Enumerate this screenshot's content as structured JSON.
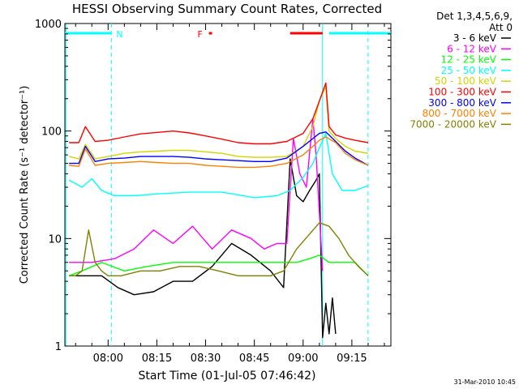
{
  "chart_data": {
    "type": "line",
    "title": "HESSI Observing Summary Count Rates, Corrected",
    "xlabel": "Start Time (01-Jul-05 07:46:42)",
    "ylabel": "Corrected Count Rate (s⁻¹ detector⁻¹)",
    "y_scale": "log",
    "ylim": [
      1,
      1000
    ],
    "xlim": [
      "07:46:42",
      "09:27:00"
    ],
    "x_ticks": [
      "08:00",
      "08:15",
      "08:30",
      "08:45",
      "09:00",
      "09:15"
    ],
    "y_ticks": [
      {
        "value": 1,
        "label": "1"
      },
      {
        "value": 10,
        "label": "10"
      },
      {
        "value": 100,
        "label": "100"
      },
      {
        "value": 1000,
        "label": "1000"
      }
    ],
    "legend": {
      "position": "right",
      "header": [
        "Det 1,3,4,5,6,9,",
        "Att 0"
      ]
    },
    "flags": [
      {
        "label": "N",
        "color": "#00ffff",
        "segments": [
          [
            "07:46:42",
            "08:01:00"
          ],
          [
            "09:08:00",
            "09:27:00"
          ]
        ]
      },
      {
        "label": "F",
        "color": "#ff0000",
        "segments": [
          [
            "08:31:00",
            "08:32:00"
          ],
          [
            "08:56:00",
            "09:06:00"
          ]
        ]
      }
    ],
    "vertical_lines": [
      {
        "x": "07:47:00",
        "color": "#00ffff",
        "style": "solid"
      },
      {
        "x": "08:01:00",
        "color": "#00ffff",
        "style": "dashed"
      },
      {
        "x": "09:06:00",
        "color": "#00ffff",
        "style": "solid"
      },
      {
        "x": "09:20:00",
        "color": "#00ffff",
        "style": "dashed"
      }
    ],
    "series": [
      {
        "name": "3 - 6 keV",
        "color": "#000000",
        "x": [
          "07:48",
          "07:52",
          "07:58",
          "08:03",
          "08:08",
          "08:14",
          "08:20",
          "08:26",
          "08:32",
          "08:38",
          "08:44",
          "08:50",
          "08:54",
          "08:56",
          "08:58",
          "09:00",
          "09:02",
          "09:04",
          "09:05",
          "09:06",
          "09:07",
          "09:08",
          "09:09",
          "09:10"
        ],
        "y": [
          4.5,
          4.5,
          4.5,
          3.5,
          3,
          3.2,
          4,
          4,
          5.5,
          9,
          7,
          5,
          3.5,
          55,
          25,
          22,
          28,
          35,
          40,
          1.2,
          2.5,
          1.3,
          2.8,
          1.3
        ]
      },
      {
        "name": "6 - 12 keV",
        "color": "#ff00ff",
        "x": [
          "07:48",
          "07:55",
          "08:02",
          "08:08",
          "08:14",
          "08:20",
          "08:26",
          "08:32",
          "08:38",
          "08:44",
          "08:48",
          "08:52",
          "08:55",
          "08:57",
          "08:59",
          "09:01",
          "09:03",
          "09:04",
          "09:06"
        ],
        "y": [
          6,
          6,
          6.5,
          8,
          12,
          9,
          13,
          8,
          12,
          10,
          8,
          9,
          9,
          85,
          40,
          30,
          130,
          60,
          5
        ]
      },
      {
        "name": "12 - 25 keV",
        "color": "#00ff00",
        "x": [
          "07:48",
          "07:52",
          "07:58",
          "08:05",
          "08:12",
          "08:20",
          "08:30",
          "08:40",
          "08:50",
          "08:58",
          "09:02",
          "09:05",
          "09:08",
          "09:12",
          "09:16",
          "09:20"
        ],
        "y": [
          4.5,
          5,
          6,
          5,
          5.5,
          6,
          6,
          6,
          6,
          6,
          6.5,
          7,
          6,
          6,
          6,
          4.5
        ]
      },
      {
        "name": "25 - 50 keV",
        "color": "#00ffff",
        "x": [
          "07:48",
          "07:52",
          "07:55",
          "07:58",
          "08:02",
          "08:08",
          "08:15",
          "08:25",
          "08:35",
          "08:45",
          "08:52",
          "08:56",
          "09:00",
          "09:03",
          "09:05",
          "09:07",
          "09:09",
          "09:12",
          "09:16",
          "09:20"
        ],
        "y": [
          35,
          30,
          36,
          28,
          25,
          25,
          26,
          27,
          27,
          24,
          25,
          28,
          37,
          50,
          70,
          95,
          40,
          28,
          28,
          31
        ]
      },
      {
        "name": "50 - 100 keV",
        "color": "#d4d400",
        "x": [
          "07:48",
          "07:51",
          "07:53",
          "07:56",
          "08:00",
          "08:05",
          "08:10",
          "08:15",
          "08:20",
          "08:25",
          "08:30",
          "08:35",
          "08:40",
          "08:45",
          "08:50",
          "08:55",
          "09:00",
          "09:03",
          "09:05",
          "09:07",
          "09:08",
          "09:10",
          "09:13",
          "09:16",
          "09:20"
        ],
        "y": [
          58,
          55,
          75,
          55,
          58,
          62,
          64,
          65,
          66,
          66,
          64,
          62,
          58,
          57,
          57,
          58,
          72,
          110,
          190,
          260,
          100,
          85,
          72,
          65,
          62
        ]
      },
      {
        "name": "100 - 300 keV",
        "color": "#ff0000",
        "x": [
          "07:48",
          "07:51",
          "07:53",
          "07:56",
          "08:00",
          "08:05",
          "08:10",
          "08:15",
          "08:20",
          "08:25",
          "08:30",
          "08:35",
          "08:40",
          "08:45",
          "08:50",
          "08:55",
          "09:00",
          "09:03",
          "09:05",
          "09:07",
          "09:08",
          "09:10",
          "09:13",
          "09:16",
          "09:20"
        ],
        "y": [
          78,
          78,
          110,
          80,
          82,
          88,
          94,
          97,
          100,
          96,
          90,
          84,
          78,
          76,
          76,
          80,
          95,
          130,
          190,
          280,
          110,
          92,
          86,
          82,
          78
        ]
      },
      {
        "name": "300 - 800 keV",
        "color": "#0000ff",
        "x": [
          "07:48",
          "07:51",
          "07:53",
          "07:56",
          "08:00",
          "08:05",
          "08:10",
          "08:15",
          "08:20",
          "08:25",
          "08:30",
          "08:35",
          "08:40",
          "08:45",
          "08:50",
          "08:55",
          "09:00",
          "09:03",
          "09:05",
          "09:07",
          "09:10",
          "09:13",
          "09:16",
          "09:20"
        ],
        "y": [
          50,
          50,
          72,
          52,
          55,
          56,
          58,
          58,
          58,
          57,
          55,
          54,
          53,
          52,
          52,
          56,
          72,
          85,
          95,
          98,
          80,
          65,
          56,
          48
        ]
      },
      {
        "name": "800 - 7000 keV",
        "color": "#ff8000",
        "x": [
          "07:48",
          "07:51",
          "07:53",
          "07:56",
          "08:00",
          "08:05",
          "08:10",
          "08:15",
          "08:20",
          "08:25",
          "08:30",
          "08:35",
          "08:40",
          "08:45",
          "08:50",
          "08:55",
          "09:00",
          "09:03",
          "09:05",
          "09:07",
          "09:10",
          "09:13",
          "09:16",
          "09:20"
        ],
        "y": [
          48,
          47,
          68,
          48,
          50,
          51,
          52,
          51,
          50,
          50,
          48,
          47,
          46,
          46,
          47,
          50,
          60,
          72,
          82,
          88,
          78,
          62,
          54,
          48
        ]
      },
      {
        "name": "7000 - 20000 keV",
        "color": "#808000",
        "x": [
          "07:48",
          "07:50",
          "07:52",
          "07:54",
          "07:56",
          "07:58",
          "08:00",
          "08:04",
          "08:10",
          "08:16",
          "08:22",
          "08:28",
          "08:34",
          "08:40",
          "08:46",
          "08:50",
          "08:54",
          "08:58",
          "09:02",
          "09:05",
          "09:08",
          "09:11",
          "09:14",
          "09:17",
          "09:20"
        ],
        "y": [
          4.5,
          4.5,
          5,
          12,
          6,
          5,
          4.5,
          4.5,
          5,
          5,
          5.5,
          5.5,
          5,
          4.5,
          4.5,
          4.5,
          5,
          8,
          11,
          14,
          13,
          10,
          7,
          5.5,
          4.5
        ]
      }
    ]
  },
  "footer": {
    "timestamp": "31-Mar-2010 10:45"
  }
}
